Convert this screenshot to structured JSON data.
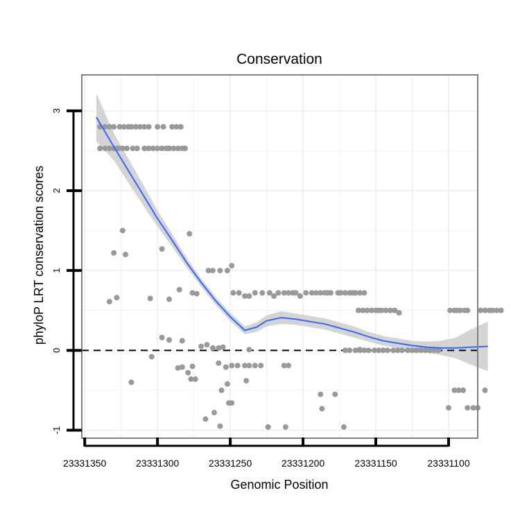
{
  "chart_data": {
    "type": "scatter",
    "title": "Conservation",
    "xlabel": "Genomic Position",
    "ylabel": "phyloP LRT conservation scores",
    "xlim": [
      23331352,
      23331080
    ],
    "ylim": [
      -1.1,
      3.45
    ],
    "x_reversed": true,
    "x_ticks": [
      23331350,
      23331300,
      23331250,
      23331200,
      23331150,
      23331100
    ],
    "x_tick_labels": [
      "23331350",
      "23331300",
      "23331250",
      "23331200",
      "23331150",
      "23331100"
    ],
    "y_ticks": [
      -1,
      0,
      1,
      2,
      3
    ],
    "y_tick_labels": [
      "-1",
      "0",
      "1",
      "2",
      "3"
    ],
    "reference_line": {
      "y": 0,
      "style": "dashed"
    },
    "grid": true,
    "colors": {
      "points": "#999999",
      "smooth": "#3366ff",
      "band": "#d4d4d4",
      "border": "#808080",
      "grid": "#f0f0f0"
    },
    "points": [
      [
        23331339.5,
        2.8
      ],
      [
        23331336,
        2.8
      ],
      [
        23331333,
        2.8
      ],
      [
        23331330,
        2.8
      ],
      [
        23331326,
        2.8
      ],
      [
        23331323,
        2.8
      ],
      [
        23331320,
        2.8
      ],
      [
        23331318,
        2.8
      ],
      [
        23331315,
        2.8
      ],
      [
        23331312,
        2.8
      ],
      [
        23331309,
        2.8
      ],
      [
        23331306,
        2.8
      ],
      [
        23331300,
        2.8
      ],
      [
        23331296,
        2.8
      ],
      [
        23331290,
        2.8
      ],
      [
        23331287,
        2.8
      ],
      [
        23331284,
        2.8
      ],
      [
        23331339.5,
        2.53
      ],
      [
        23331336,
        2.53
      ],
      [
        23331333,
        2.53
      ],
      [
        23331330,
        2.53
      ],
      [
        23331327,
        2.53
      ],
      [
        23331324,
        2.53
      ],
      [
        23331321,
        2.53
      ],
      [
        23331317,
        2.53
      ],
      [
        23331314,
        2.53
      ],
      [
        23331309,
        2.53
      ],
      [
        23331306,
        2.53
      ],
      [
        23331303,
        2.53
      ],
      [
        23331300,
        2.53
      ],
      [
        23331297,
        2.53
      ],
      [
        23331294,
        2.53
      ],
      [
        23331292,
        2.53
      ],
      [
        23331289,
        2.53
      ],
      [
        23331286,
        2.53
      ],
      [
        23331283,
        2.53
      ],
      [
        23331281,
        2.53
      ],
      [
        23331324,
        1.5
      ],
      [
        23331278,
        1.46
      ],
      [
        23331297,
        1.27
      ],
      [
        23331330,
        1.22
      ],
      [
        23331322,
        1.2
      ],
      [
        23331265,
        1.0
      ],
      [
        23331262,
        1.0
      ],
      [
        23331257,
        1.0
      ],
      [
        23331252,
        1.0
      ],
      [
        23331249,
        1.06
      ],
      [
        23331285,
        0.76
      ],
      [
        23331276,
        0.72
      ],
      [
        23331273,
        0.71
      ],
      [
        23331248,
        0.72
      ],
      [
        23331244,
        0.72
      ],
      [
        23331240,
        0.68
      ],
      [
        23331237,
        0.68
      ],
      [
        23331233,
        0.72
      ],
      [
        23331228,
        0.72
      ],
      [
        23331223,
        0.72
      ],
      [
        23331220,
        0.68
      ],
      [
        23331217,
        0.72
      ],
      [
        23331213,
        0.72
      ],
      [
        23331210,
        0.72
      ],
      [
        23331207,
        0.72
      ],
      [
        23331205,
        0.72
      ],
      [
        23331202,
        0.68
      ],
      [
        23331198,
        0.72
      ],
      [
        23331194,
        0.72
      ],
      [
        23331191,
        0.72
      ],
      [
        23331188,
        0.72
      ],
      [
        23331185,
        0.72
      ],
      [
        23331183,
        0.72
      ],
      [
        23331181,
        0.72
      ],
      [
        23331176,
        0.72
      ],
      [
        23331174,
        0.72
      ],
      [
        23331171,
        0.72
      ],
      [
        23331168,
        0.72
      ],
      [
        23331166,
        0.72
      ],
      [
        23331164,
        0.72
      ],
      [
        23331161,
        0.72
      ],
      [
        23331158,
        0.72
      ],
      [
        23331333,
        0.61
      ],
      [
        23331328,
        0.66
      ],
      [
        23331305,
        0.65
      ],
      [
        23331292,
        0.64
      ],
      [
        23331162,
        0.5
      ],
      [
        23331159,
        0.5
      ],
      [
        23331156,
        0.5
      ],
      [
        23331153,
        0.5
      ],
      [
        23331150,
        0.5
      ],
      [
        23331148,
        0.5
      ],
      [
        23331146,
        0.5
      ],
      [
        23331143,
        0.5
      ],
      [
        23331140,
        0.5
      ],
      [
        23331137,
        0.5
      ],
      [
        23331134,
        0.47
      ],
      [
        23331099,
        0.5
      ],
      [
        23331096,
        0.5
      ],
      [
        23331094,
        0.5
      ],
      [
        23331092,
        0.5
      ],
      [
        23331089,
        0.5
      ],
      [
        23331087,
        0.5
      ],
      [
        23331078,
        0.5
      ],
      [
        23331075,
        0.5
      ],
      [
        23331072,
        0.5
      ],
      [
        23331070,
        0.5
      ],
      [
        23331067,
        0.5
      ],
      [
        23331064,
        0.5
      ],
      [
        23331297,
        0.16
      ],
      [
        23331292,
        0.13
      ],
      [
        23331283,
        0.12
      ],
      [
        23331270,
        0.05
      ],
      [
        23331266,
        0.07
      ],
      [
        23331262,
        0.03
      ],
      [
        23331258,
        0.03
      ],
      [
        23331255,
        0.04
      ],
      [
        23331237,
        0.01
      ],
      [
        23331161,
        0.01
      ],
      [
        23331304,
        -0.08
      ],
      [
        23331286,
        -0.22
      ],
      [
        23331283,
        -0.21
      ],
      [
        23331276,
        -0.2
      ],
      [
        23331279,
        -0.28
      ],
      [
        23331277,
        -0.36
      ],
      [
        23331274,
        -0.36
      ],
      [
        23331258,
        -0.16
      ],
      [
        23331253,
        -0.21
      ],
      [
        23331249,
        -0.19
      ],
      [
        23331245,
        -0.19
      ],
      [
        23331240,
        -0.19
      ],
      [
        23331237,
        -0.19
      ],
      [
        23331233,
        -0.19
      ],
      [
        23331229,
        -0.19
      ],
      [
        23331213,
        -0.19
      ],
      [
        23331210,
        -0.19
      ],
      [
        23331318,
        -0.4
      ],
      [
        23331252,
        -0.42
      ],
      [
        23331239,
        -0.38
      ],
      [
        23331256,
        -0.5
      ],
      [
        23331251,
        -0.66
      ],
      [
        23331249,
        -0.66
      ],
      [
        23331267,
        -0.86
      ],
      [
        23331261,
        -0.78
      ],
      [
        23331257,
        -0.95
      ],
      [
        23331224,
        -0.96
      ],
      [
        23331212,
        -0.96
      ],
      [
        23331188,
        -0.55
      ],
      [
        23331187,
        -0.73
      ],
      [
        23331178,
        -0.55
      ],
      [
        23331172,
        -0.96
      ],
      [
        23331100,
        -0.72
      ],
      [
        23331096,
        -0.5
      ],
      [
        23331093,
        -0.5
      ],
      [
        23331090,
        -0.5
      ],
      [
        23331087,
        -0.72
      ],
      [
        23331083,
        -0.72
      ],
      [
        23331080,
        -0.72
      ],
      [
        23331075,
        -0.5
      ],
      [
        23331171,
        0.0
      ],
      [
        23331168,
        0.0
      ],
      [
        23331164,
        0.0
      ],
      [
        23331161,
        0.0
      ],
      [
        23331158,
        0.0
      ],
      [
        23331155,
        0.0
      ],
      [
        23331151,
        0.0
      ],
      [
        23331148,
        0.0
      ],
      [
        23331145,
        0.0
      ],
      [
        23331142,
        0.0
      ],
      [
        23331138,
        0.0
      ],
      [
        23331135,
        0.0
      ],
      [
        23331132,
        0.0
      ],
      [
        23331128,
        0.0
      ],
      [
        23331125,
        0.0
      ],
      [
        23331122,
        0.0
      ],
      [
        23331119,
        0.0
      ],
      [
        23331116,
        0.0
      ],
      [
        23331113,
        0.0
      ],
      [
        23331110,
        0.0
      ],
      [
        23331107,
        0.0
      ]
    ],
    "smooth": {
      "x": [
        23331342,
        23331330,
        23331320,
        23331310,
        23331300,
        23331290,
        23331280,
        23331270,
        23331260,
        23331250,
        23331240,
        23331232,
        23331225,
        23331215,
        23331205,
        23331195,
        23331185,
        23331175,
        23331165,
        23331155,
        23331145,
        23331135,
        23331125,
        23331115,
        23331105,
        23331095,
        23331085,
        23331073
      ],
      "y": [
        2.92,
        2.55,
        2.25,
        1.95,
        1.65,
        1.38,
        1.1,
        0.85,
        0.62,
        0.42,
        0.25,
        0.29,
        0.37,
        0.41,
        0.39,
        0.36,
        0.33,
        0.28,
        0.23,
        0.17,
        0.12,
        0.09,
        0.06,
        0.04,
        0.03,
        0.03,
        0.04,
        0.05
      ],
      "lower": [
        2.62,
        2.38,
        2.1,
        1.82,
        1.55,
        1.3,
        1.04,
        0.8,
        0.57,
        0.37,
        0.2,
        0.23,
        0.3,
        0.33,
        0.32,
        0.29,
        0.26,
        0.21,
        0.16,
        0.11,
        0.06,
        0.03,
        0.0,
        -0.03,
        -0.06,
        -0.1,
        -0.18,
        -0.26
      ],
      "upper": [
        3.22,
        2.72,
        2.4,
        2.08,
        1.75,
        1.46,
        1.16,
        0.9,
        0.67,
        0.47,
        0.3,
        0.35,
        0.44,
        0.49,
        0.46,
        0.43,
        0.4,
        0.35,
        0.3,
        0.23,
        0.18,
        0.15,
        0.12,
        0.11,
        0.12,
        0.16,
        0.26,
        0.36
      ]
    }
  }
}
